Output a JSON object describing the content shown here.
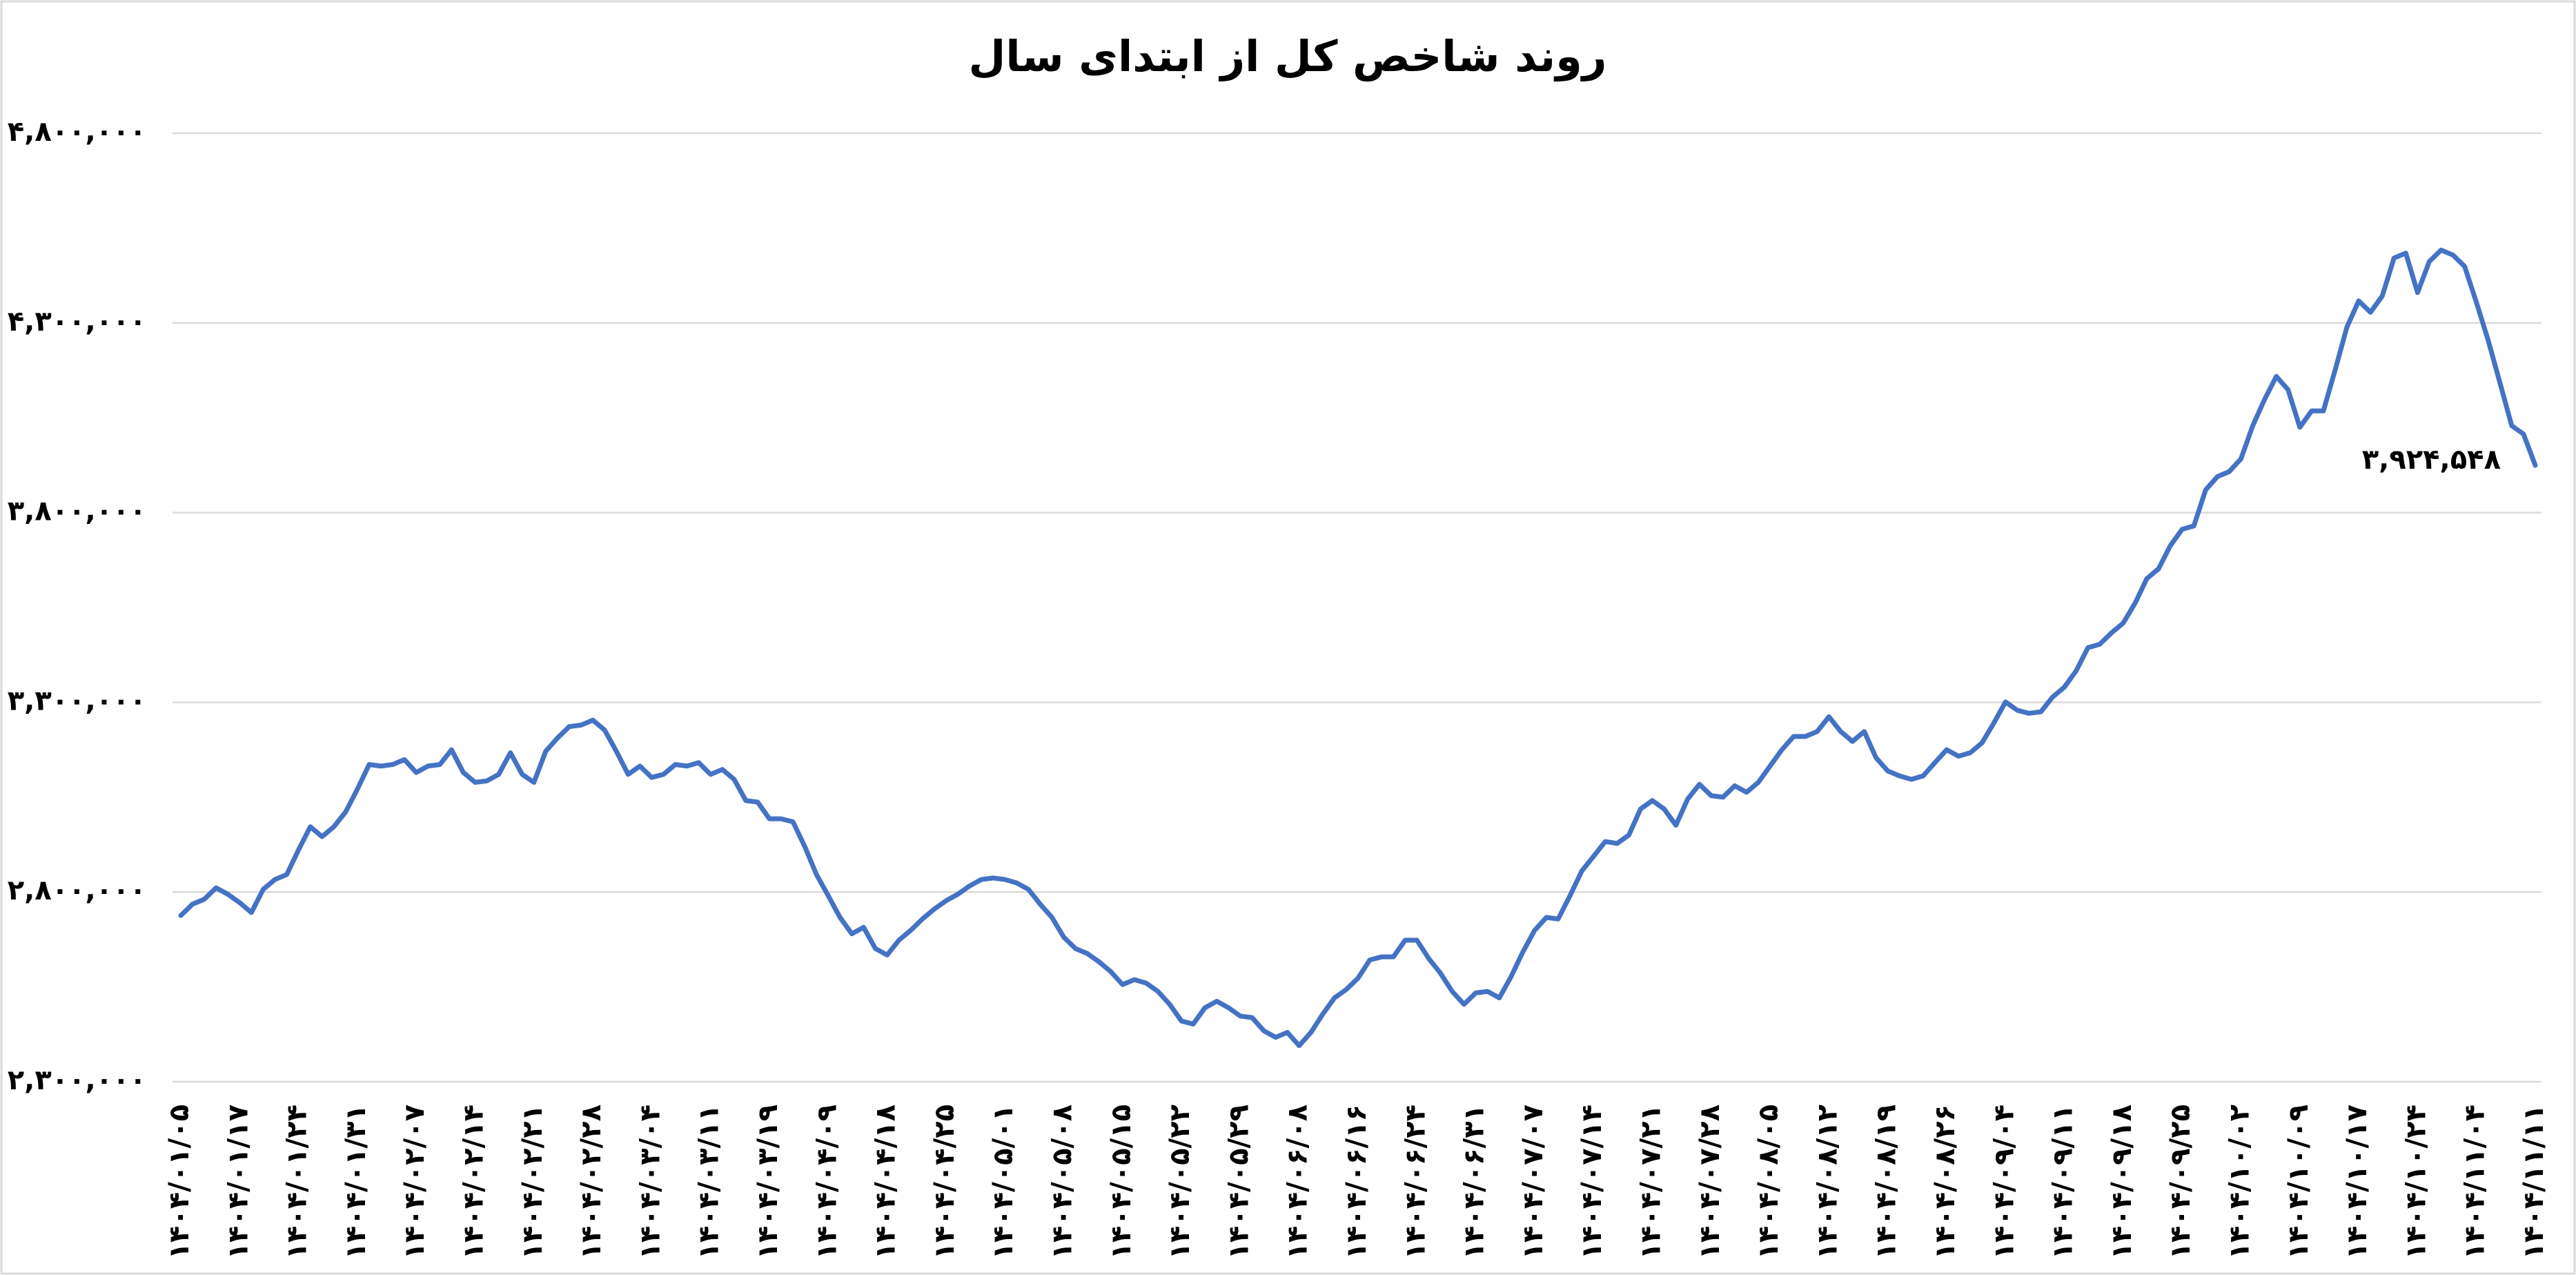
{
  "chart_data": {
    "type": "line",
    "title": "روند شاخص کل از ابتدای سال",
    "color": "#4472c4",
    "grid": true,
    "ylim": [
      2300000,
      4800000
    ],
    "yticks": [
      {
        "value": 2300000,
        "label": "۲,۳۰۰,۰۰۰"
      },
      {
        "value": 2800000,
        "label": "۲,۸۰۰,۰۰۰"
      },
      {
        "value": 3300000,
        "label": "۳,۳۰۰,۰۰۰"
      },
      {
        "value": 3800000,
        "label": "۳,۸۰۰,۰۰۰"
      },
      {
        "value": 4300000,
        "label": "۴,۳۰۰,۰۰۰"
      },
      {
        "value": 4800000,
        "label": "۴,۸۰۰,۰۰۰"
      }
    ],
    "categories": [
      "۱۴۰۴/۰۱/۰۵",
      null,
      null,
      null,
      null,
      "۱۴۰۴/۰۱/۱۷",
      null,
      null,
      null,
      null,
      "۱۴۰۴/۰۱/۲۴",
      null,
      null,
      null,
      null,
      "۱۴۰۴/۰۱/۳۱",
      null,
      null,
      null,
      null,
      "۱۴۰۴/۰۲/۰۷",
      null,
      null,
      null,
      null,
      "۱۴۰۴/۰۲/۱۴",
      null,
      null,
      null,
      null,
      "۱۴۰۴/۰۲/۲۱",
      null,
      null,
      null,
      null,
      "۱۴۰۴/۰۲/۲۸",
      null,
      null,
      null,
      null,
      "۱۴۰۴/۰۳/۰۴",
      null,
      null,
      null,
      null,
      "۱۴۰۴/۰۳/۱۱",
      null,
      null,
      null,
      null,
      "۱۴۰۴/۰۳/۱۹",
      null,
      null,
      null,
      null,
      "۱۴۰۴/۰۴/۰۹",
      null,
      null,
      null,
      null,
      "۱۴۰۴/۰۴/۱۸",
      null,
      null,
      null,
      null,
      "۱۴۰۴/۰۴/۲۵",
      null,
      null,
      null,
      null,
      "۱۴۰۴/۰۵/۰۱",
      null,
      null,
      null,
      null,
      "۱۴۰۴/۰۵/۰۸",
      null,
      null,
      null,
      null,
      "۱۴۰۴/۰۵/۱۵",
      null,
      null,
      null,
      null,
      "۱۴۰۴/۰۵/۲۲",
      null,
      null,
      null,
      null,
      "۱۴۰۴/۰۵/۲۹",
      null,
      null,
      null,
      null,
      "۱۴۰۴/۰۶/۰۸",
      null,
      null,
      null,
      null,
      "۱۴۰۴/۰۶/۱۶",
      null,
      null,
      null,
      null,
      "۱۴۰۴/۰۶/۲۴",
      null,
      null,
      null,
      null,
      "۱۴۰۴/۰۶/۳۱",
      null,
      null,
      null,
      null,
      "۱۴۰۴/۰۷/۰۷",
      null,
      null,
      null,
      null,
      "۱۴۰۴/۰۷/۱۴",
      null,
      null,
      null,
      null,
      "۱۴۰۴/۰۷/۲۱",
      null,
      null,
      null,
      null,
      "۱۴۰۴/۰۷/۲۸",
      null,
      null,
      null,
      null,
      "۱۴۰۴/۰۸/۰۵",
      null,
      null,
      null,
      null,
      "۱۴۰۴/۰۸/۱۲",
      null,
      null,
      null,
      null,
      "۱۴۰۴/۰۸/۱۹",
      null,
      null,
      null,
      null,
      "۱۴۰۴/۰۸/۲۶",
      null,
      null,
      null,
      null,
      "۱۴۰۴/۰۹/۰۴",
      null,
      null,
      null,
      null,
      "۱۴۰۴/۰۹/۱۱",
      null,
      null,
      null,
      null,
      "۱۴۰۴/۰۹/۱۸",
      null,
      null,
      null,
      null,
      "۱۴۰۴/۰۹/۲۵",
      null,
      null,
      null,
      null,
      "۱۴۰۴/۱۰/۰۲",
      null,
      null,
      null,
      null,
      "۱۴۰۴/۱۰/۰۹",
      null,
      null,
      null,
      null,
      "۱۴۰۴/۱۰/۱۷",
      null,
      null,
      null,
      null,
      "۱۴۰۴/۱۰/۲۴",
      null,
      null,
      null,
      null,
      "۱۴۰۴/۱۱/۰۴",
      null,
      null,
      null,
      null,
      "۱۴۰۴/۱۱/۱۱"
    ],
    "values": [
      2738000,
      2768000,
      2781000,
      2811000,
      2794000,
      2772000,
      2746000,
      2807000,
      2833000,
      2846000,
      2911000,
      2972000,
      2946000,
      2972000,
      3011000,
      3071000,
      3136000,
      3132000,
      3136000,
      3149000,
      3115000,
      3132000,
      3136000,
      3175000,
      3115000,
      3089000,
      3093000,
      3110000,
      3167000,
      3110000,
      3089000,
      3171000,
      3206000,
      3236000,
      3240000,
      3253000,
      3227000,
      3171000,
      3110000,
      3132000,
      3102000,
      3110000,
      3136000,
      3132000,
      3141000,
      3110000,
      3123000,
      3097000,
      3041000,
      3037000,
      2993000,
      2993000,
      2985000,
      2920000,
      2846000,
      2790000,
      2733000,
      2690000,
      2707000,
      2651000,
      2634000,
      2673000,
      2699000,
      2729000,
      2755000,
      2777000,
      2794000,
      2816000,
      2833000,
      2837000,
      2833000,
      2824000,
      2807000,
      2768000,
      2733000,
      2681000,
      2651000,
      2638000,
      2616000,
      2590000,
      2556000,
      2569000,
      2560000,
      2538000,
      2504000,
      2460000,
      2452000,
      2495000,
      2512000,
      2495000,
      2473000,
      2469000,
      2434000,
      2417000,
      2430000,
      2395000,
      2430000,
      2478000,
      2521000,
      2543000,
      2573000,
      2621000,
      2629000,
      2629000,
      2673000,
      2673000,
      2625000,
      2586000,
      2538000,
      2504000,
      2534000,
      2538000,
      2521000,
      2577000,
      2642000,
      2699000,
      2733000,
      2729000,
      2790000,
      2855000,
      2894000,
      2933000,
      2928000,
      2950000,
      3019000,
      3041000,
      3019000,
      2976000,
      3045000,
      3084000,
      3054000,
      3050000,
      3080000,
      3063000,
      3089000,
      3132000,
      3175000,
      3210000,
      3210000,
      3223000,
      3262000,
      3223000,
      3197000,
      3223000,
      3154000,
      3119000,
      3106000,
      3097000,
      3106000,
      3141000,
      3175000,
      3158000,
      3167000,
      3193000,
      3245000,
      3301000,
      3279000,
      3271000,
      3275000,
      3314000,
      3340000,
      3383000,
      3444000,
      3453000,
      3483000,
      3509000,
      3561000,
      3626000,
      3652000,
      3713000,
      3756000,
      3765000,
      3860000,
      3895000,
      3908000,
      3942000,
      4029000,
      4098000,
      4159000,
      4124000,
      4025000,
      4068000,
      4068000,
      4176000,
      4289000,
      4358000,
      4328000,
      4371000,
      4471000,
      4484000,
      4380000,
      4462000,
      4492000,
      4479000,
      4449000,
      4354000,
      4254000,
      4142000,
      4029000,
      4007000,
      3924548
    ],
    "value_labels": [
      null,
      null,
      null,
      null,
      null,
      null,
      null,
      null,
      null,
      null,
      null,
      null,
      null,
      null,
      null,
      null,
      null,
      null,
      null,
      null,
      null,
      null,
      null,
      null,
      null,
      null,
      null,
      null,
      null,
      null,
      null,
      null,
      null,
      null,
      null,
      null,
      null,
      null,
      null,
      null,
      null,
      null,
      null,
      null,
      null,
      null,
      null,
      null,
      null,
      null,
      null,
      null,
      null,
      null,
      null,
      null,
      null,
      null,
      null,
      null,
      null,
      null,
      null,
      null,
      null,
      null,
      null,
      null,
      null,
      null,
      null,
      null,
      null,
      null,
      null,
      null,
      null,
      null,
      null,
      null,
      null,
      null,
      null,
      null,
      null,
      null,
      null,
      null,
      null,
      null,
      null,
      null,
      null,
      null,
      null,
      null,
      null,
      null,
      null,
      null,
      null,
      null,
      null,
      null,
      null,
      null,
      null,
      null,
      null,
      null,
      null,
      null,
      null,
      null,
      null,
      null,
      null,
      null,
      null,
      null,
      null,
      null,
      null,
      null,
      null,
      null,
      null,
      null,
      null,
      null,
      null,
      null,
      null,
      null,
      null,
      null,
      null,
      null,
      null,
      null,
      null,
      null,
      null,
      null,
      null,
      null,
      null,
      null,
      null,
      null,
      null,
      null,
      null,
      null,
      null,
      null,
      null,
      null,
      null,
      null,
      null,
      null,
      null,
      null,
      null,
      null,
      null,
      null,
      null,
      null,
      null,
      null,
      null,
      null,
      null,
      null,
      null,
      null,
      null,
      null,
      null,
      null,
      null,
      null,
      null,
      null,
      null,
      null,
      null,
      null,
      null,
      null,
      null,
      null,
      null,
      null,
      null,
      null,
      null,
      null,
      "۳,۹۲۴,۵۴۸"
    ]
  }
}
